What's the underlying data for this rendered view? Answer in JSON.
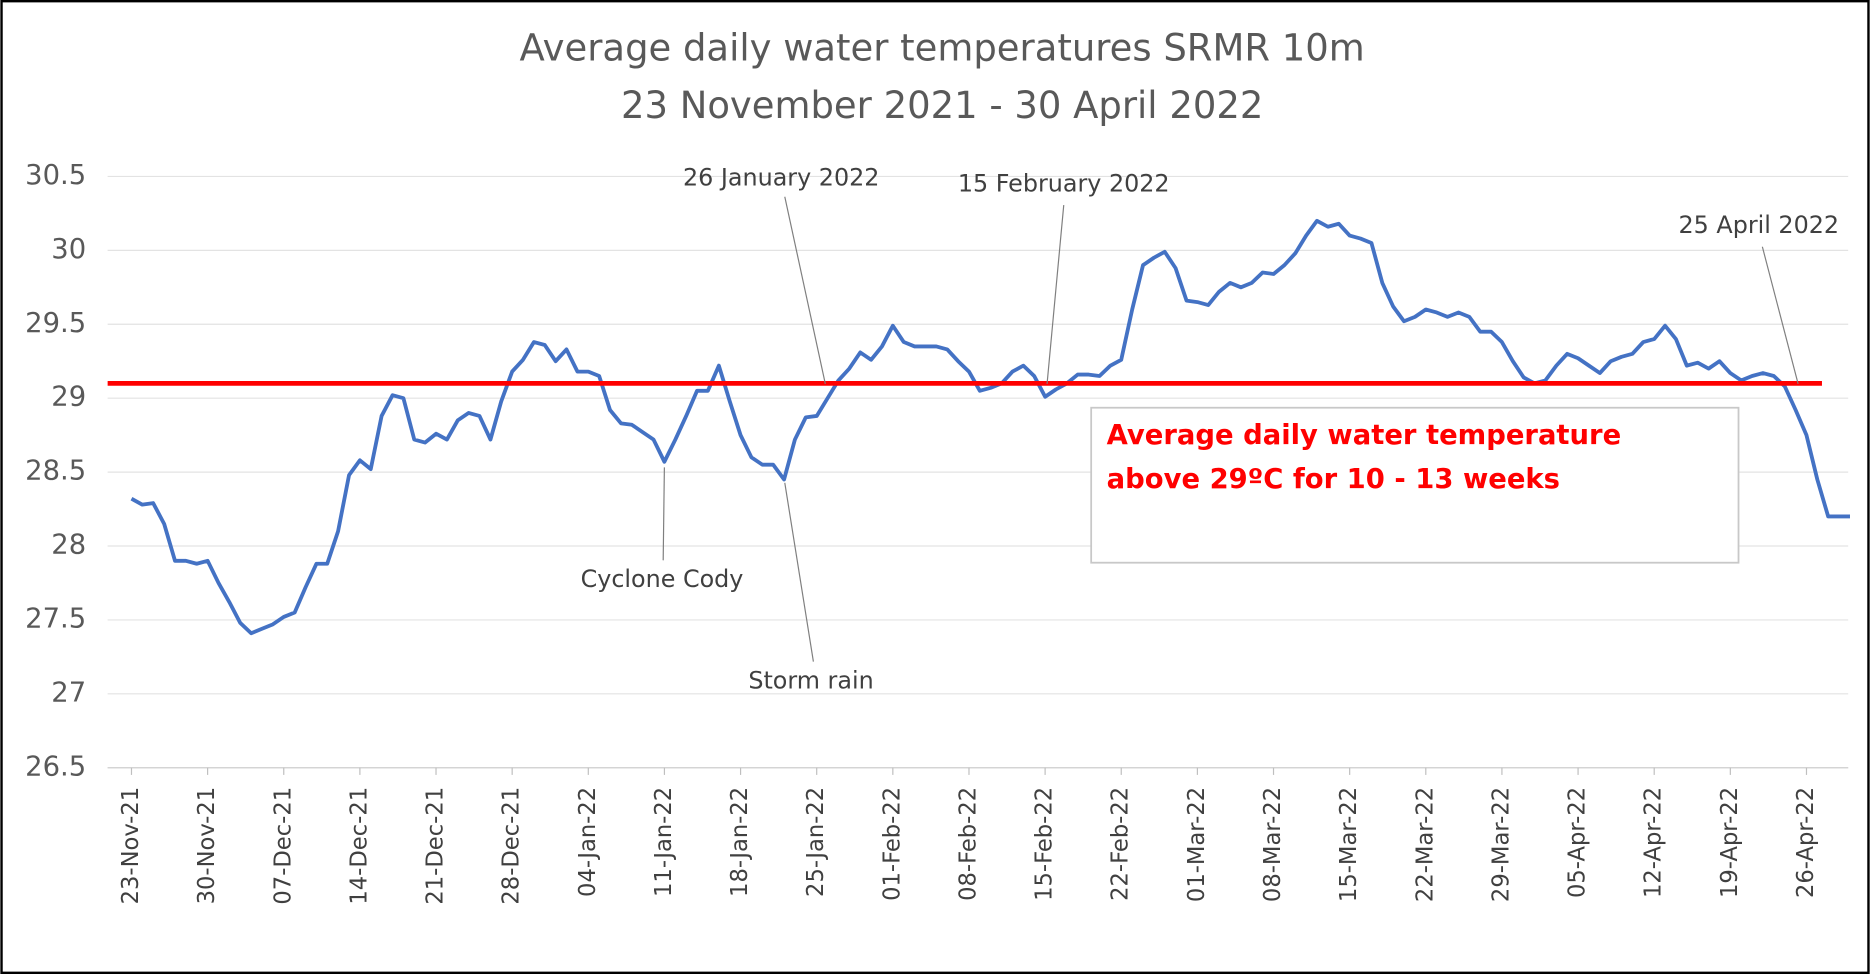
{
  "chart_data": {
    "type": "line",
    "title": [
      "Average daily water temperatures SRMR 10m",
      "23 November 2021 - 30 April 2022"
    ],
    "categories": [
      "23-Nov-21",
      null,
      null,
      null,
      null,
      null,
      null,
      "30-Nov-21",
      null,
      null,
      null,
      null,
      null,
      null,
      "07-Dec-21",
      null,
      null,
      null,
      null,
      null,
      null,
      "14-Dec-21",
      null,
      null,
      null,
      null,
      null,
      null,
      "21-Dec-21",
      null,
      null,
      null,
      null,
      null,
      null,
      "28-Dec-21",
      null,
      null,
      null,
      null,
      null,
      null,
      "04-Jan-22",
      null,
      null,
      null,
      null,
      null,
      null,
      "11-Jan-22",
      null,
      null,
      null,
      null,
      null,
      null,
      "18-Jan-22",
      null,
      null,
      null,
      null,
      null,
      null,
      "25-Jan-22",
      null,
      null,
      null,
      null,
      null,
      null,
      "01-Feb-22",
      null,
      null,
      null,
      null,
      null,
      null,
      "08-Feb-22",
      null,
      null,
      null,
      null,
      null,
      null,
      "15-Feb-22",
      null,
      null,
      null,
      null,
      null,
      null,
      "22-Feb-22",
      null,
      null,
      null,
      null,
      null,
      null,
      "01-Mar-22",
      null,
      null,
      null,
      null,
      null,
      null,
      "08-Mar-22",
      null,
      null,
      null,
      null,
      null,
      null,
      "15-Mar-22",
      null,
      null,
      null,
      null,
      null,
      null,
      "22-Mar-22",
      null,
      null,
      null,
      null,
      null,
      null,
      "29-Mar-22",
      null,
      null,
      null,
      null,
      null,
      null,
      "05-Apr-22",
      null,
      null,
      null,
      null,
      null,
      null,
      "12-Apr-22",
      null,
      null,
      null,
      null,
      null,
      null,
      "19-Apr-22",
      null,
      null,
      null,
      null,
      null,
      null,
      "26-Apr-22",
      null,
      null,
      null,
      null
    ],
    "values": [
      28.32,
      28.28,
      28.29,
      28.15,
      27.9,
      27.9,
      27.88,
      27.9,
      27.75,
      27.62,
      27.48,
      27.41,
      27.44,
      27.47,
      27.52,
      27.55,
      27.72,
      27.88,
      27.88,
      28.1,
      28.48,
      28.58,
      28.52,
      28.88,
      29.02,
      29.0,
      28.72,
      28.7,
      28.76,
      28.72,
      28.85,
      28.9,
      28.88,
      28.72,
      28.98,
      29.18,
      29.26,
      29.38,
      29.36,
      29.25,
      29.33,
      29.18,
      29.18,
      29.15,
      28.92,
      28.83,
      28.82,
      28.77,
      28.72,
      28.57,
      28.72,
      28.88,
      29.05,
      29.05,
      29.22,
      28.98,
      28.75,
      28.6,
      28.55,
      28.55,
      28.45,
      28.72,
      28.87,
      28.88,
      29.0,
      29.12,
      29.2,
      29.31,
      29.26,
      29.35,
      29.49,
      29.38,
      29.35,
      29.35,
      29.35,
      29.33,
      29.25,
      29.18,
      29.05,
      29.07,
      29.1,
      29.18,
      29.22,
      29.15,
      29.01,
      29.06,
      29.1,
      29.16,
      29.16,
      29.15,
      29.22,
      29.26,
      29.6,
      29.9,
      29.95,
      29.99,
      29.88,
      29.66,
      29.65,
      29.63,
      29.72,
      29.78,
      29.75,
      29.78,
      29.85,
      29.84,
      29.9,
      29.98,
      30.1,
      30.2,
      30.16,
      30.18,
      30.1,
      30.08,
      30.05,
      29.78,
      29.62,
      29.52,
      29.55,
      29.6,
      29.58,
      29.55,
      29.58,
      29.55,
      29.45,
      29.45,
      29.38,
      29.25,
      29.14,
      29.1,
      29.12,
      29.22,
      29.3,
      29.27,
      29.22,
      29.17,
      29.25,
      29.28,
      29.3,
      29.38,
      29.4,
      29.49,
      29.4,
      29.22,
      29.24,
      29.2,
      29.25,
      29.17,
      29.12,
      29.15,
      29.17,
      29.15,
      29.08,
      28.92,
      28.75,
      28.45,
      28.2,
      28.2,
      28.2
    ],
    "color": "#4472c4",
    "ylim": [
      26.5,
      30.5
    ],
    "yticks": [
      26.5,
      27,
      27.5,
      28,
      28.5,
      29,
      29.5,
      30,
      30.5
    ],
    "grid": true,
    "reference_line": {
      "value": 29.1,
      "color": "#ff0000"
    },
    "annotations": [
      "26 January 2022",
      "15 February 2022",
      "25 April 2022",
      "Cyclone Cody",
      "Storm rain"
    ],
    "box_text": [
      "Average daily water temperature",
      "above 29ºC  for 10 - 13 weeks"
    ]
  }
}
